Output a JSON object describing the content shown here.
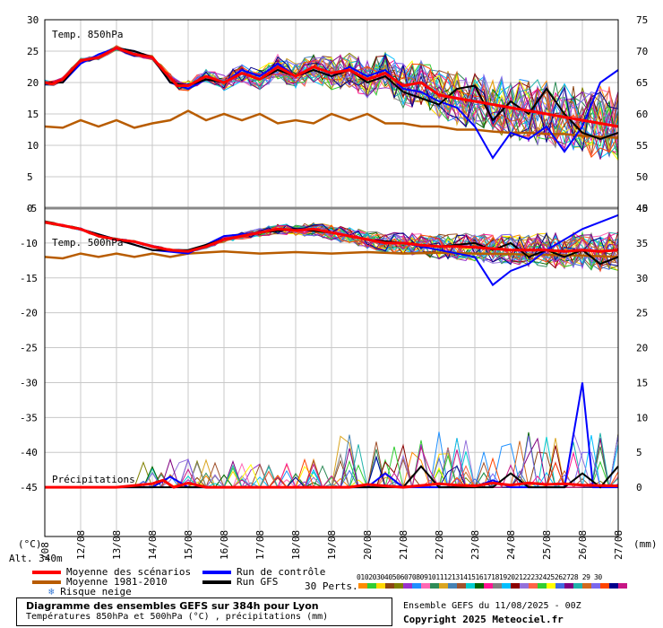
{
  "chart_data": {
    "type": "line",
    "title": "Diagramme des ensembles GEFS sur 384h pour Lyon",
    "subtitle": "Températures 850hPa et 500hPa (°C) , précipitations (mm)",
    "run_label": "Ensemble GEFS du 11/08/2025 - 00Z",
    "copyright": "Copyright 2025 Meteociel.fr",
    "altitude": "Alt. 340m",
    "left_unit": "(°C)",
    "right_unit": "(mm)",
    "panel_labels": {
      "t850": "Temp. 850hPa",
      "t500": "Temp. 500hPa",
      "precip": "Précipitations"
    },
    "x_ticks": [
      "12/08",
      "13/08",
      "14/08",
      "15/08",
      "16/08",
      "17/08",
      "18/08",
      "19/08",
      "20/08",
      "21/08",
      "22/08",
      "23/08",
      "24/08",
      "25/08",
      "26/08",
      "27/08"
    ],
    "x_tick_first": "/08",
    "left_axis_top": [
      30,
      25,
      20,
      15,
      10,
      5,
      0
    ],
    "right_axis_top": [
      75,
      70,
      65,
      60,
      55,
      50,
      45
    ],
    "left_axis_bottom": [
      -5,
      -10,
      -15,
      -20,
      -25,
      -30,
      -35,
      -40,
      -45
    ],
    "right_axis_bottom": [
      40,
      35,
      30,
      25,
      20,
      15,
      10,
      5,
      0
    ],
    "ylim_t850": [
      0,
      30
    ],
    "ylim_t500_precip": [
      -50,
      -5
    ],
    "x_days": [
      0,
      16
    ],
    "series": [
      {
        "name": "Moyenne des scénarios",
        "color": "#ff0000",
        "t850": [
          [
            0,
            20
          ],
          [
            0.2,
            19.8
          ],
          [
            0.5,
            20.5
          ],
          [
            1,
            23.5
          ],
          [
            1.5,
            24
          ],
          [
            2,
            25.5
          ],
          [
            2.5,
            24.5
          ],
          [
            3,
            24
          ],
          [
            3.3,
            22
          ],
          [
            3.7,
            19.5
          ],
          [
            4,
            19.5
          ],
          [
            4.5,
            21
          ],
          [
            5,
            20
          ],
          [
            5.5,
            21.5
          ],
          [
            6,
            20.5
          ],
          [
            6.5,
            22.5
          ],
          [
            7,
            21
          ],
          [
            7.5,
            22.5
          ],
          [
            8,
            21.5
          ],
          [
            8.5,
            22
          ],
          [
            9,
            20.5
          ],
          [
            9.5,
            21.5
          ],
          [
            10,
            19.5
          ],
          [
            10.5,
            20
          ],
          [
            11,
            18
          ],
          [
            11.5,
            17.5
          ],
          [
            12,
            17
          ],
          [
            12.5,
            16.5
          ],
          [
            13,
            16
          ],
          [
            13.5,
            15.5
          ],
          [
            14,
            15
          ],
          [
            14.5,
            14.5
          ],
          [
            15,
            14
          ],
          [
            15.5,
            13.5
          ],
          [
            16,
            13
          ]
        ],
        "t500": [
          [
            0,
            -7
          ],
          [
            0.5,
            -7.5
          ],
          [
            1,
            -8
          ],
          [
            1.5,
            -9
          ],
          [
            2,
            -9.5
          ],
          [
            2.5,
            -9.8
          ],
          [
            3,
            -10.5
          ],
          [
            3.5,
            -11
          ],
          [
            4,
            -11.2
          ],
          [
            4.5,
            -10.5
          ],
          [
            5,
            -9.5
          ],
          [
            5.5,
            -9
          ],
          [
            6,
            -8.5
          ],
          [
            6.5,
            -8
          ],
          [
            7,
            -8.2
          ],
          [
            7.5,
            -8
          ],
          [
            8,
            -8.5
          ],
          [
            8.5,
            -9
          ],
          [
            9,
            -9.5
          ],
          [
            9.5,
            -10
          ],
          [
            10,
            -10
          ],
          [
            10.5,
            -10.3
          ],
          [
            11,
            -10.5
          ],
          [
            11.5,
            -10.5
          ],
          [
            12,
            -10.6
          ],
          [
            12.5,
            -10.8
          ],
          [
            13,
            -11
          ],
          [
            13.5,
            -11
          ],
          [
            14,
            -11
          ],
          [
            14.5,
            -11.2
          ],
          [
            15,
            -11
          ],
          [
            15.5,
            -11.2
          ],
          [
            16,
            -11
          ]
        ],
        "precip": [
          [
            0,
            0
          ],
          [
            2,
            0
          ],
          [
            3,
            0.5
          ],
          [
            3.3,
            1
          ],
          [
            3.6,
            0
          ],
          [
            4,
            0.6
          ],
          [
            4.5,
            0
          ],
          [
            8.5,
            0
          ],
          [
            9,
            0.4
          ],
          [
            9.5,
            0.2
          ],
          [
            10,
            0
          ],
          [
            11,
            0.5
          ],
          [
            11.5,
            0.3
          ],
          [
            12,
            0.2
          ],
          [
            12.5,
            0.6
          ],
          [
            13,
            0.3
          ],
          [
            13.5,
            0.6
          ],
          [
            14,
            0.4
          ],
          [
            14.5,
            0.5
          ],
          [
            15,
            0.3
          ],
          [
            16,
            0.2
          ]
        ]
      },
      {
        "name": "Moyenne 1981-2010",
        "color": "#b85c00",
        "t850": [
          [
            0,
            13
          ],
          [
            0.5,
            12.8
          ],
          [
            1,
            14
          ],
          [
            1.5,
            13
          ],
          [
            2,
            14
          ],
          [
            2.5,
            12.8
          ],
          [
            3,
            13.5
          ],
          [
            3.5,
            14
          ],
          [
            4,
            15.5
          ],
          [
            4.5,
            14
          ],
          [
            5,
            15
          ],
          [
            5.5,
            14
          ],
          [
            6,
            15
          ],
          [
            6.5,
            13.5
          ],
          [
            7,
            14
          ],
          [
            7.5,
            13.5
          ],
          [
            8,
            15
          ],
          [
            8.5,
            14
          ],
          [
            9,
            15
          ],
          [
            9.5,
            13.5
          ],
          [
            10,
            13.5
          ],
          [
            10.5,
            13
          ],
          [
            11,
            13
          ],
          [
            11.5,
            12.5
          ],
          [
            12,
            12.5
          ],
          [
            12.5,
            12.2
          ],
          [
            13,
            12
          ],
          [
            13.5,
            12
          ],
          [
            14,
            11.8
          ],
          [
            14.5,
            11.8
          ],
          [
            15,
            11.5
          ],
          [
            16,
            11.2
          ]
        ],
        "t500": [
          [
            0,
            -12
          ],
          [
            0.5,
            -12.2
          ],
          [
            1,
            -11.5
          ],
          [
            1.5,
            -12
          ],
          [
            2,
            -11.5
          ],
          [
            2.5,
            -12
          ],
          [
            3,
            -11.5
          ],
          [
            3.5,
            -12
          ],
          [
            4,
            -11.5
          ],
          [
            5,
            -11.2
          ],
          [
            6,
            -11.5
          ],
          [
            7,
            -11.3
          ],
          [
            8,
            -11.5
          ],
          [
            9,
            -11.3
          ],
          [
            10,
            -11.5
          ],
          [
            11,
            -11.4
          ],
          [
            12,
            -11.5
          ],
          [
            13,
            -11.6
          ],
          [
            14,
            -11.7
          ],
          [
            15,
            -11.8
          ],
          [
            16,
            -12
          ]
        ]
      },
      {
        "name": "Run de contrôle",
        "color": "#0000ff",
        "t850": [
          [
            0,
            20
          ],
          [
            0.5,
            20
          ],
          [
            1,
            23
          ],
          [
            1.5,
            24.5
          ],
          [
            2,
            25.5
          ],
          [
            2.5,
            25
          ],
          [
            3,
            24
          ],
          [
            3.5,
            20
          ],
          [
            4,
            19
          ],
          [
            4.5,
            20.5
          ],
          [
            5,
            20
          ],
          [
            5.5,
            22
          ],
          [
            6,
            21
          ],
          [
            6.5,
            23
          ],
          [
            7,
            21
          ],
          [
            7.5,
            22
          ],
          [
            8,
            21
          ],
          [
            8.5,
            22.5
          ],
          [
            9,
            21
          ],
          [
            9.5,
            22
          ],
          [
            10,
            19
          ],
          [
            10.5,
            18.5
          ],
          [
            11,
            17
          ],
          [
            11.5,
            16
          ],
          [
            12,
            13
          ],
          [
            12.5,
            8
          ],
          [
            13,
            12
          ],
          [
            13.5,
            11
          ],
          [
            14,
            13
          ],
          [
            14.5,
            9
          ],
          [
            15,
            13
          ],
          [
            15.5,
            20
          ],
          [
            16,
            22
          ]
        ],
        "t500": [
          [
            0,
            -7
          ],
          [
            1,
            -8
          ],
          [
            2,
            -9.5
          ],
          [
            3,
            -11
          ],
          [
            4,
            -11.5
          ],
          [
            5,
            -9
          ],
          [
            6,
            -8.5
          ],
          [
            7,
            -8
          ],
          [
            8,
            -8.5
          ],
          [
            9,
            -9.5
          ],
          [
            10,
            -10
          ],
          [
            11,
            -11
          ],
          [
            12,
            -12
          ],
          [
            12.5,
            -16
          ],
          [
            13,
            -14
          ],
          [
            13.5,
            -13
          ],
          [
            14,
            -11
          ],
          [
            15,
            -8
          ],
          [
            16,
            -6
          ]
        ],
        "precip": [
          [
            0,
            0
          ],
          [
            3,
            0
          ],
          [
            3.5,
            1.5
          ],
          [
            4,
            0
          ],
          [
            9,
            0
          ],
          [
            9.5,
            2
          ],
          [
            10,
            0
          ],
          [
            12,
            0
          ],
          [
            12.5,
            1
          ],
          [
            13,
            0
          ],
          [
            14.5,
            0
          ],
          [
            15,
            15
          ],
          [
            15.3,
            0
          ],
          [
            16,
            0
          ]
        ]
      },
      {
        "name": "Run GFS",
        "color": "#000000",
        "t850": [
          [
            0,
            20
          ],
          [
            0.5,
            20
          ],
          [
            1,
            23.5
          ],
          [
            1.5,
            24
          ],
          [
            2,
            25.5
          ],
          [
            2.5,
            25
          ],
          [
            3,
            24
          ],
          [
            3.5,
            20
          ],
          [
            4,
            19.5
          ],
          [
            4.5,
            20.5
          ],
          [
            5,
            20
          ],
          [
            5.5,
            21.5
          ],
          [
            6,
            20.5
          ],
          [
            6.5,
            22
          ],
          [
            7,
            21
          ],
          [
            7.5,
            22
          ],
          [
            8,
            21
          ],
          [
            8.5,
            22
          ],
          [
            9,
            20
          ],
          [
            9.5,
            21
          ],
          [
            10,
            18.5
          ],
          [
            10.5,
            17.5
          ],
          [
            11,
            16.5
          ],
          [
            11.5,
            19
          ],
          [
            12,
            19.5
          ],
          [
            12.5,
            14
          ],
          [
            13,
            17
          ],
          [
            13.5,
            15
          ],
          [
            14,
            19
          ],
          [
            14.5,
            15
          ],
          [
            15,
            12
          ],
          [
            15.5,
            11
          ],
          [
            16,
            12
          ]
        ],
        "t500": [
          [
            0,
            -7
          ],
          [
            1,
            -8
          ],
          [
            2,
            -9.5
          ],
          [
            3,
            -11
          ],
          [
            4,
            -11
          ],
          [
            5,
            -9.5
          ],
          [
            6,
            -8.5
          ],
          [
            7,
            -8
          ],
          [
            8,
            -8.5
          ],
          [
            9,
            -9.5
          ],
          [
            10,
            -10
          ],
          [
            11,
            -10.5
          ],
          [
            12,
            -10
          ],
          [
            12.5,
            -11
          ],
          [
            13,
            -10
          ],
          [
            13.5,
            -12
          ],
          [
            14,
            -11
          ],
          [
            14.5,
            -12
          ],
          [
            15,
            -11
          ],
          [
            15.5,
            -13
          ],
          [
            16,
            -12
          ]
        ],
        "precip": [
          [
            0,
            0
          ],
          [
            10,
            0
          ],
          [
            10.5,
            3
          ],
          [
            11,
            0
          ],
          [
            12.5,
            0
          ],
          [
            13,
            2
          ],
          [
            13.5,
            0
          ],
          [
            14.5,
            0
          ],
          [
            15,
            2
          ],
          [
            15.5,
            0
          ],
          [
            16,
            3
          ]
        ]
      }
    ],
    "legend_extra": "Risque neige",
    "pert_label": "30 Perts.",
    "pert_numbers": "01020304050607080910111213141516171819202122232425262728 29 30",
    "grid": true
  },
  "pert_colors": [
    "#ff8c00",
    "#33cc33",
    "#ffd700",
    "#8b4513",
    "#808000",
    "#9932cc",
    "#1e90ff",
    "#ff69b4",
    "#2e8b57",
    "#daa520",
    "#4682b4",
    "#a0522d",
    "#00ced1",
    "#006400",
    "#ff1493",
    "#808080",
    "#00bfff",
    "#8b0000",
    "#9370db",
    "#ff6347",
    "#32cd32",
    "#ffff00",
    "#4169e1",
    "#800080",
    "#20b2aa",
    "#d2691e",
    "#7b68ee",
    "#ff4500",
    "#00008b",
    "#c71585"
  ]
}
